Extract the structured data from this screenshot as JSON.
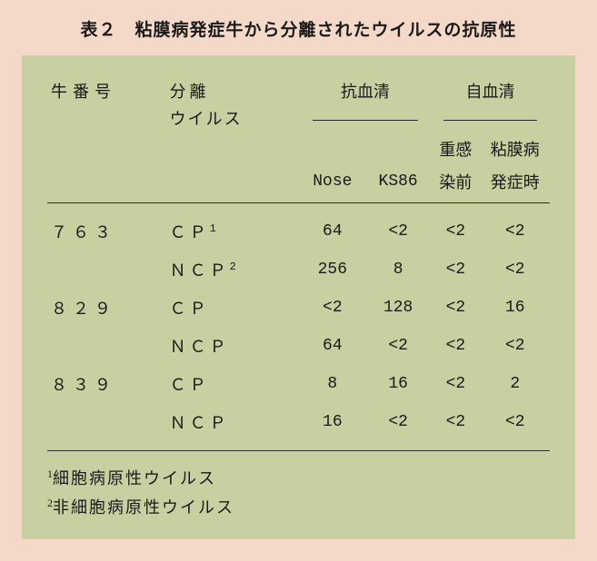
{
  "title": "表２　粘膜病発症牛から分離されたウイルスの抗原性",
  "headers": {
    "cow": "牛番号",
    "isolate": "分離",
    "isolate_sub": "ウイルス",
    "antiserum": "抗血清",
    "antiserum_sub1": "Nose",
    "antiserum_sub2": "KS86",
    "own_serum": "自血清",
    "own_sub1a": "重感",
    "own_sub1b": "染前",
    "own_sub2a": "粘膜病",
    "own_sub2b": "発症時"
  },
  "rows": [
    {
      "cow": "７６３",
      "virus": "ＣＰ",
      "sup": "1",
      "nose": "64",
      "ks86": "<2",
      "s1": "<2",
      "s2": "<2"
    },
    {
      "cow": "",
      "virus": "ＮＣＰ",
      "sup": "2",
      "nose": "256",
      "ks86": "8",
      "s1": "<2",
      "s2": "<2"
    },
    {
      "cow": "８２９",
      "virus": "ＣＰ",
      "sup": "",
      "nose": "<2",
      "ks86": "128",
      "s1": "<2",
      "s2": "16"
    },
    {
      "cow": "",
      "virus": "ＮＣＰ",
      "sup": "",
      "nose": "64",
      "ks86": "<2",
      "s1": "<2",
      "s2": "<2"
    },
    {
      "cow": "８３９",
      "virus": "ＣＰ",
      "sup": "",
      "nose": "8",
      "ks86": "16",
      "s1": "<2",
      "s2": "2"
    },
    {
      "cow": "",
      "virus": "ＮＣＰ",
      "sup": "",
      "nose": "16",
      "ks86": "<2",
      "s1": "<2",
      "s2": "<2"
    }
  ],
  "footnotes": {
    "f1_sup": "1",
    "f1": "細胞病原性ウイルス",
    "f2_sup": "2",
    "f2": "非細胞病原性ウイルス"
  },
  "colors": {
    "page_bg": "#f5d9c8",
    "table_bg": "#c8cfa0",
    "rule": "#2b2b2b",
    "text": "#1a1a1a"
  }
}
